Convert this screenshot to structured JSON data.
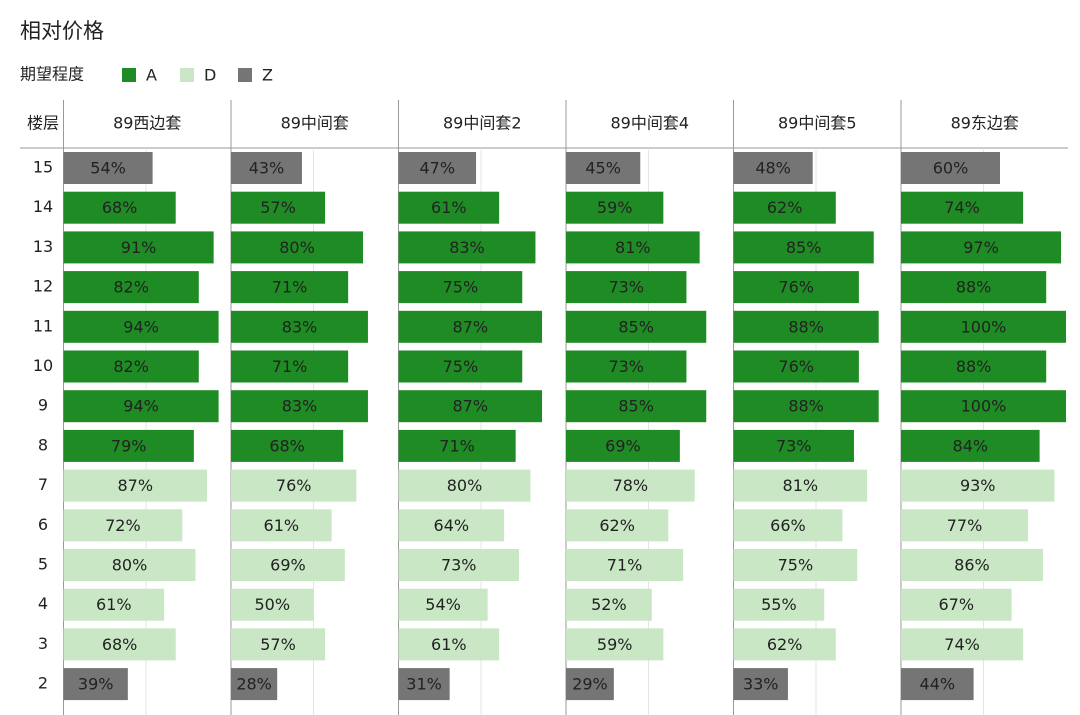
{
  "chart_data": {
    "type": "bar",
    "orientation": "horizontal",
    "title": "相对价格",
    "legend": {
      "title": "期望程度",
      "items": [
        {
          "name": "A",
          "color": "#1f8b24"
        },
        {
          "name": "D",
          "color": "#c9e7c5"
        },
        {
          "name": "Z",
          "color": "#757575"
        }
      ]
    },
    "category_label": "楼层",
    "categories": [
      "15",
      "14",
      "13",
      "12",
      "11",
      "10",
      "9",
      "8",
      "7",
      "6",
      "5",
      "4",
      "3",
      "2"
    ],
    "levels": [
      "Z",
      "A",
      "A",
      "A",
      "A",
      "A",
      "A",
      "A",
      "D",
      "D",
      "D",
      "D",
      "D",
      "Z"
    ],
    "xlim": [
      0,
      100
    ],
    "xticks": [
      50
    ],
    "grid": true,
    "series": [
      {
        "name": "89西边套",
        "values": [
          54,
          68,
          91,
          82,
          94,
          82,
          94,
          79,
          87,
          72,
          80,
          61,
          68,
          39
        ],
        "value_labels": [
          "54%",
          "68%",
          "91%",
          "82%",
          "94%",
          "82%",
          "94%",
          "79%",
          "87%",
          "72%",
          "80%",
          "61%",
          "68%",
          "39%"
        ]
      },
      {
        "name": "89中间套",
        "values": [
          43,
          57,
          80,
          71,
          83,
          71,
          83,
          68,
          76,
          61,
          69,
          50,
          57,
          28
        ],
        "value_labels": [
          "43%",
          "57%",
          "80%",
          "71%",
          "83%",
          "71%",
          "83%",
          "68%",
          "76%",
          "61%",
          "69%",
          "50%",
          "57%",
          "28%"
        ]
      },
      {
        "name": "89中间套2",
        "values": [
          47,
          61,
          83,
          75,
          87,
          75,
          87,
          71,
          80,
          64,
          73,
          54,
          61,
          31
        ],
        "value_labels": [
          "47%",
          "61%",
          "83%",
          "75%",
          "87%",
          "75%",
          "87%",
          "71%",
          "80%",
          "64%",
          "73%",
          "54%",
          "61%",
          "31%"
        ]
      },
      {
        "name": "89中间套4",
        "values": [
          45,
          59,
          81,
          73,
          85,
          73,
          85,
          69,
          78,
          62,
          71,
          52,
          59,
          29
        ],
        "value_labels": [
          "45%",
          "59%",
          "81%",
          "73%",
          "85%",
          "73%",
          "85%",
          "69%",
          "78%",
          "62%",
          "71%",
          "52%",
          "59%",
          "29%"
        ]
      },
      {
        "name": "89中间套5",
        "values": [
          48,
          62,
          85,
          76,
          88,
          76,
          88,
          73,
          81,
          66,
          75,
          55,
          62,
          33
        ],
        "value_labels": [
          "48%",
          "62%",
          "85%",
          "76%",
          "88%",
          "76%",
          "88%",
          "73%",
          "81%",
          "66%",
          "75%",
          "55%",
          "62%",
          "33%"
        ]
      },
      {
        "name": "89东边套",
        "values": [
          60,
          74,
          97,
          88,
          100,
          88,
          100,
          84,
          93,
          77,
          86,
          67,
          74,
          44
        ],
        "value_labels": [
          "60%",
          "74%",
          "97%",
          "88%",
          "100%",
          "88%",
          "100%",
          "84%",
          "93%",
          "77%",
          "86%",
          "67%",
          "74%",
          "44%"
        ]
      }
    ]
  }
}
